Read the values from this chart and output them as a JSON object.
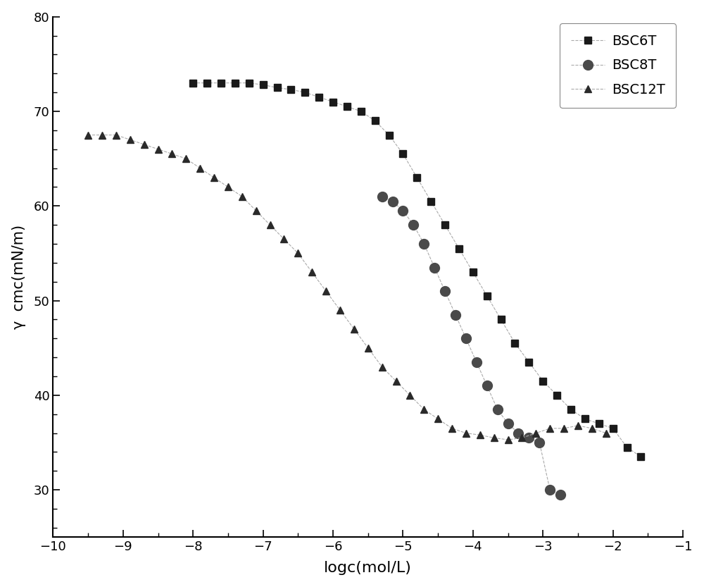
{
  "title": "",
  "xlabel": "logc(mol/L)",
  "ylabel": "γ  cmc(mN/m)",
  "xlim": [
    -10,
    -1
  ],
  "ylim": [
    25,
    80
  ],
  "xticks": [
    -10,
    -9,
    -8,
    -7,
    -6,
    -5,
    -4,
    -3,
    -2,
    -1
  ],
  "yticks": [
    30,
    40,
    50,
    60,
    70,
    80
  ],
  "line_color": "#aaaaaa",
  "marker_color_bsc6t": "#1a1a1a",
  "marker_color_bsc8t": "#4a4a4a",
  "marker_color_bsc12t": "#2a2a2a",
  "legend_labels": [
    "BSC6T",
    "BSC8T",
    "BSC12T"
  ],
  "bg_color": "#ffffff",
  "BSC6T_x": [
    -8.0,
    -7.8,
    -7.6,
    -7.4,
    -7.2,
    -7.0,
    -6.8,
    -6.6,
    -6.4,
    -6.2,
    -6.0,
    -5.8,
    -5.6,
    -5.4,
    -5.2,
    -5.0,
    -4.8,
    -4.6,
    -4.4,
    -4.2,
    -4.0,
    -3.8,
    -3.6,
    -3.4,
    -3.2,
    -3.0,
    -2.8,
    -2.6,
    -2.4,
    -2.2,
    -2.0,
    -1.8,
    -1.6
  ],
  "BSC6T_y": [
    73.0,
    73.0,
    73.0,
    73.0,
    73.0,
    72.8,
    72.5,
    72.3,
    72.0,
    71.5,
    71.0,
    70.5,
    70.0,
    69.0,
    67.5,
    65.5,
    63.0,
    60.5,
    58.0,
    55.5,
    53.0,
    50.5,
    48.0,
    45.5,
    43.5,
    41.5,
    40.0,
    38.5,
    37.5,
    37.0,
    36.5,
    34.5,
    33.5
  ],
  "BSC8T_x": [
    -5.3,
    -5.15,
    -5.0,
    -4.85,
    -4.7,
    -4.55,
    -4.4,
    -4.25,
    -4.1,
    -3.95,
    -3.8,
    -3.65,
    -3.5,
    -3.35,
    -3.2,
    -3.05,
    -2.9,
    -2.75
  ],
  "BSC8T_y": [
    61.0,
    60.5,
    59.5,
    58.0,
    56.0,
    53.5,
    51.0,
    48.5,
    46.0,
    43.5,
    41.0,
    38.5,
    37.0,
    36.0,
    35.5,
    35.0,
    30.0,
    29.5
  ],
  "BSC12T_x": [
    -9.5,
    -9.3,
    -9.1,
    -8.9,
    -8.7,
    -8.5,
    -8.3,
    -8.1,
    -7.9,
    -7.7,
    -7.5,
    -7.3,
    -7.1,
    -6.9,
    -6.7,
    -6.5,
    -6.3,
    -6.1,
    -5.9,
    -5.7,
    -5.5,
    -5.3,
    -5.1,
    -4.9,
    -4.7,
    -4.5,
    -4.3,
    -4.1,
    -3.9,
    -3.7,
    -3.5,
    -3.3,
    -3.1,
    -2.9,
    -2.7,
    -2.5,
    -2.3,
    -2.1
  ],
  "BSC12T_y": [
    67.5,
    67.5,
    67.5,
    67.0,
    66.5,
    66.0,
    65.5,
    65.0,
    64.0,
    63.0,
    62.0,
    61.0,
    59.5,
    58.0,
    56.5,
    55.0,
    53.0,
    51.0,
    49.0,
    47.0,
    45.0,
    43.0,
    41.5,
    40.0,
    38.5,
    37.5,
    36.5,
    36.0,
    35.8,
    35.5,
    35.3,
    35.5,
    36.0,
    36.5,
    36.5,
    36.8,
    36.5,
    36.0
  ]
}
